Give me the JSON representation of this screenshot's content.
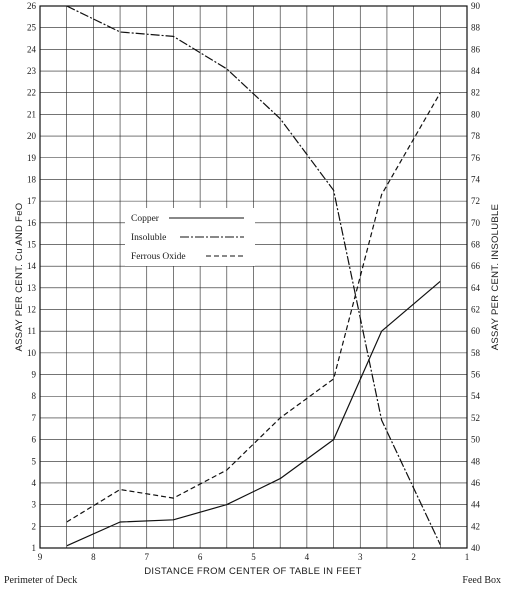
{
  "chart_data": {
    "type": "line",
    "x": [
      8.5,
      7.5,
      6.5,
      5.5,
      4.5,
      3.5,
      2.6,
      1.5
    ],
    "xlim": [
      9,
      1
    ],
    "x_ticks": [
      9,
      8,
      7,
      6,
      5,
      4,
      3,
      2,
      1
    ],
    "xlabel": "DISTANCE FROM CENTER OF TABLE IN FEET",
    "ylabel": "ASSAY PER CENT. Cu AND FeO",
    "ylim": [
      1,
      26
    ],
    "y_ticks": [
      1,
      2,
      3,
      4,
      5,
      6,
      7,
      8,
      9,
      10,
      11,
      12,
      13,
      14,
      15,
      16,
      17,
      18,
      19,
      20,
      21,
      22,
      23,
      24,
      25,
      26
    ],
    "y2label": "ASSAY PER CENT. INSOLUBLE",
    "y2lim": [
      40,
      90
    ],
    "y2_ticks": [
      40,
      42,
      44,
      46,
      48,
      50,
      52,
      54,
      56,
      58,
      60,
      62,
      64,
      66,
      68,
      70,
      72,
      74,
      76,
      78,
      80,
      82,
      84,
      86,
      88,
      90
    ],
    "grid": true,
    "legend_position": "upper-left",
    "series": [
      {
        "name": "Copper",
        "axis": "left",
        "style": "solid",
        "values": [
          1.1,
          2.2,
          2.3,
          3.0,
          4.2,
          6.0,
          11.0,
          13.3
        ]
      },
      {
        "name": "Insoluble",
        "axis": "right",
        "style": "dashdot",
        "values": [
          90.0,
          87.6,
          87.2,
          84.2,
          79.6,
          73.0,
          51.8,
          40.3
        ]
      },
      {
        "name": "Ferrous Oxide",
        "axis": "left",
        "style": "dashed",
        "values": [
          2.2,
          3.7,
          3.3,
          4.6,
          7.0,
          8.8,
          17.3,
          22.0
        ]
      }
    ],
    "footer_left": "Perimeter of Deck",
    "footer_right": "Feed Box"
  }
}
